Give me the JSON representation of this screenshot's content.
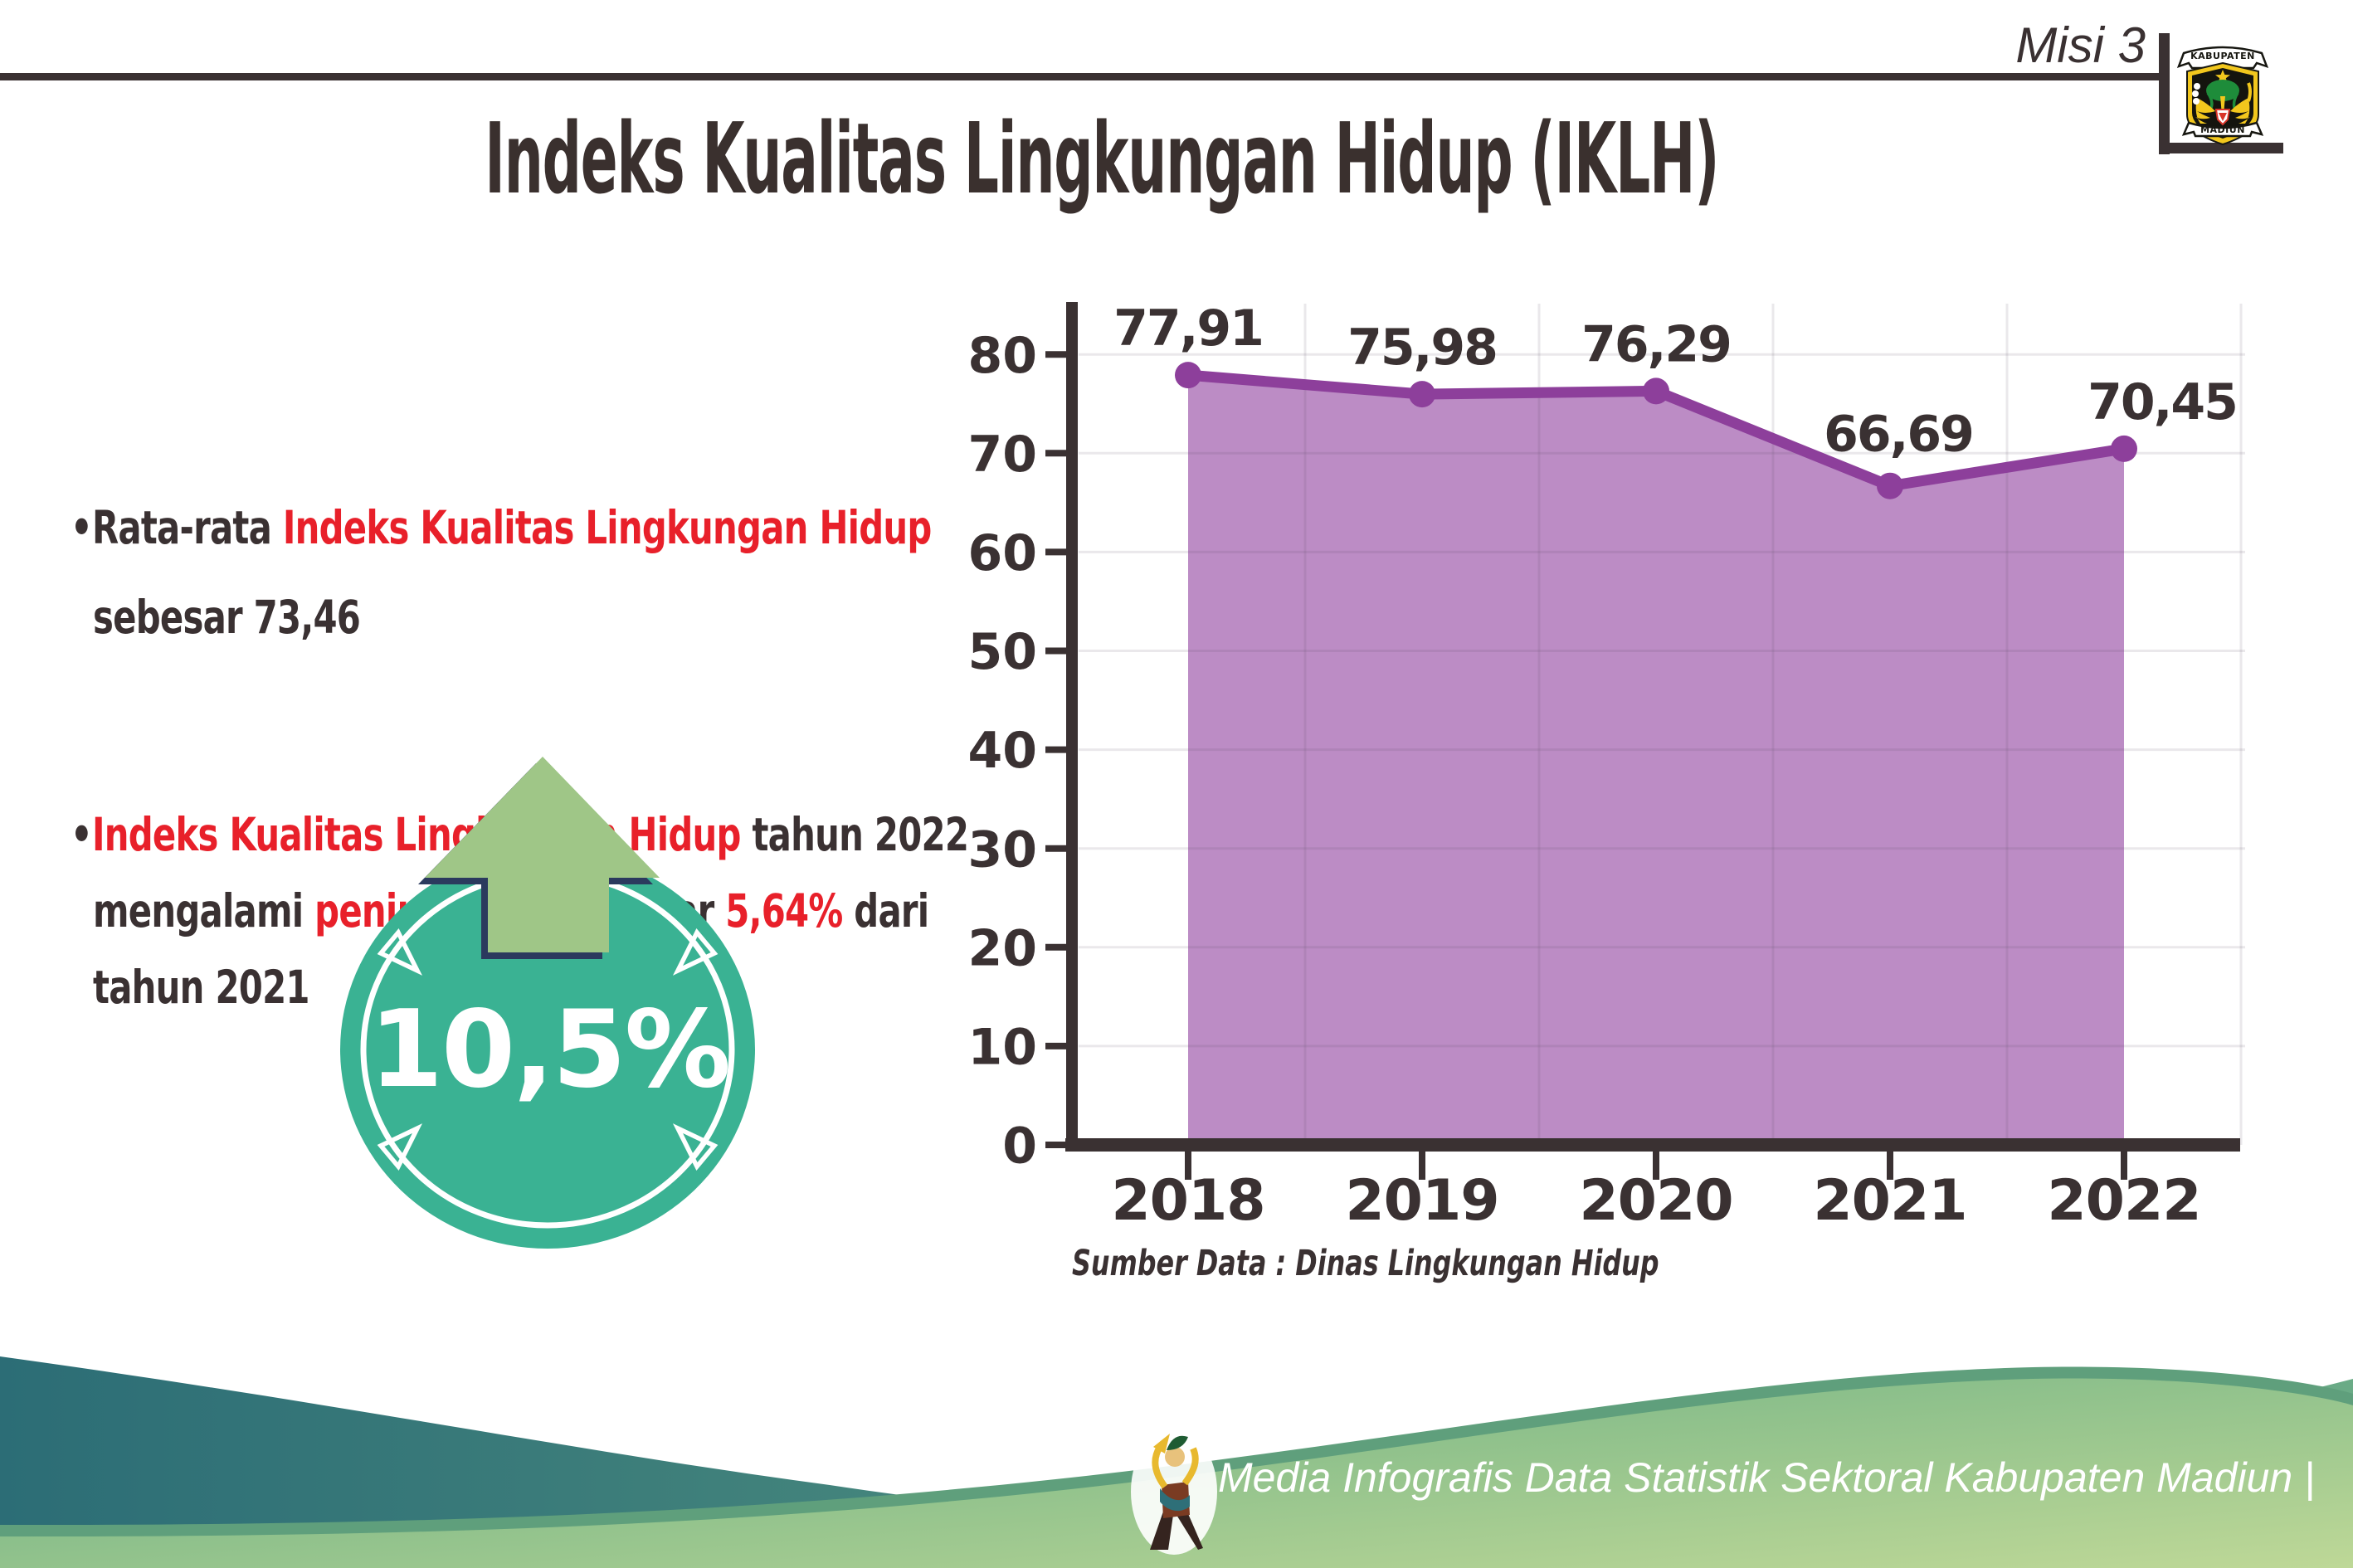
{
  "header": {
    "misi_label": "Misi 3",
    "logo_top_text": "KABUPATEN",
    "logo_bottom_text": "MADIUN"
  },
  "title": "Indeks Kualitas Lingkungan Hidup (IKLH)",
  "bullets": {
    "b1_line1_dark": "•Rata-rata ",
    "b1_line1_red": "Indeks Kualitas Lingkungan Hidup",
    "b1_line2": "sebesar 73,46",
    "b2_line1_bullet": "•",
    "b2_line1_red": "Indeks Kualitas Lingkungan Hidup",
    "b2_line1_dark": " tahun 2022",
    "b2_line2_dark1": "mengalami ",
    "b2_line2_red1": "peningkatan",
    "b2_line2_dark2": " sebesar ",
    "b2_line2_red2": "5,64%",
    "b2_line2_dark3": " dari",
    "b2_line3": "tahun 2021"
  },
  "badge": {
    "value": "10,5%",
    "direction": "increase-up-arrow"
  },
  "chart_data": {
    "type": "area",
    "title": "Indeks Kualitas Lingkungan Hidup (IKLH) 2018-2022",
    "categories": [
      "2018",
      "2019",
      "2020",
      "2021",
      "2022"
    ],
    "values": [
      77.91,
      75.98,
      76.29,
      66.69,
      70.45
    ],
    "value_labels": [
      "77,91",
      "75,98",
      "76,29",
      "66,69",
      "70,45"
    ],
    "xlabel": "",
    "ylabel": "",
    "ylim": [
      0,
      80
    ],
    "yticks": [
      0,
      10,
      20,
      30,
      40,
      50,
      60,
      70,
      80
    ],
    "grid": "on",
    "legend": "none",
    "area_color": "#b886c2",
    "line_color": "#8d3f9b",
    "axis_color": "#3a3132",
    "label_color": "#3a3132",
    "source": "Sumber Data : Dinas Lingkungan Hidup"
  },
  "footer": {
    "credit": "Media Infografis Data Statistik Sektoral Kabupaten Madiun |"
  },
  "colors": {
    "accent_red": "#e8202a",
    "dark_text": "#3a3132",
    "badge_teal": "#3ab293",
    "arrow_green": "#9fc687",
    "arrow_outline_navy": "#2b3a5e",
    "footer_teal": "#2c6d76",
    "footer_green": "#68ae83"
  }
}
